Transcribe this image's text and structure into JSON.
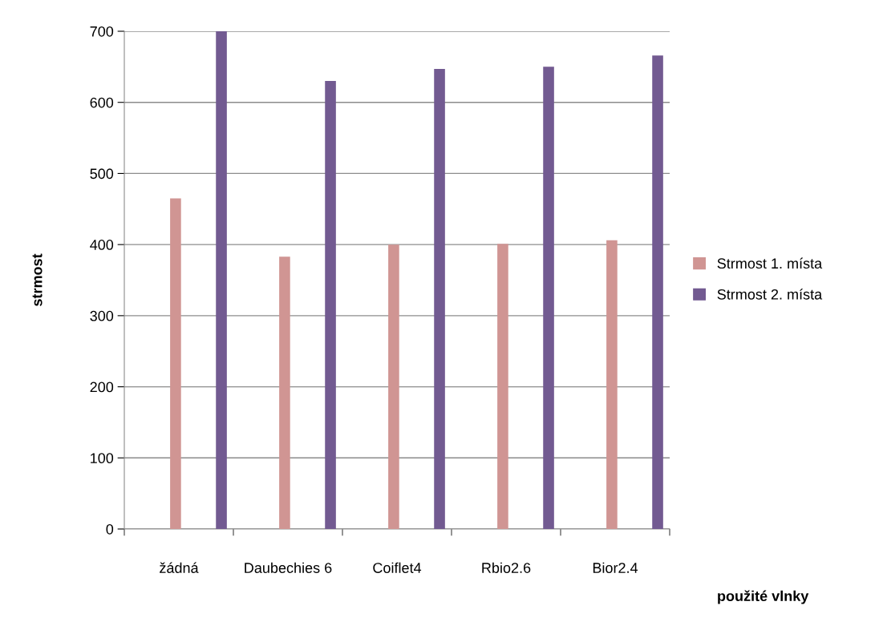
{
  "chart_data": {
    "type": "bar",
    "xlabel": "použité vlnky",
    "ylabel": "strmost",
    "categories": [
      "žádná",
      "Daubechies 6",
      "Coiflet4",
      "Rbio2.6",
      "Bior2.4"
    ],
    "series": [
      {
        "name": "Strmost 1. místa",
        "color": "#d09593",
        "values": [
          465,
          383,
          400,
          401,
          406
        ]
      },
      {
        "name": "Strmost 2. místa",
        "color": "#725a91",
        "values": [
          700,
          630,
          647,
          650,
          666
        ]
      }
    ],
    "ylim": [
      0,
      700
    ],
    "yticks": [
      0,
      100,
      200,
      300,
      400,
      500,
      600,
      700
    ],
    "grid": "y",
    "legend": "right"
  }
}
